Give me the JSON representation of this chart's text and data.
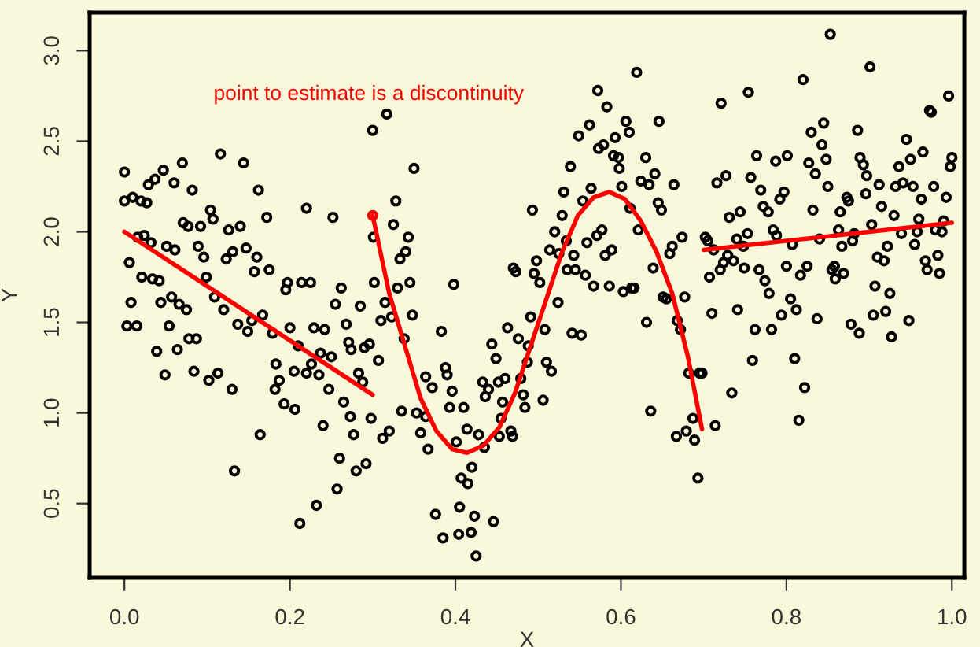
{
  "chart_data": {
    "type": "scatter",
    "xlabel": "X",
    "ylabel": "Y",
    "xlim": [
      -0.042,
      1.015
    ],
    "ylim": [
      0.09,
      3.21
    ],
    "xticks": [
      {
        "value": 0,
        "label": "0.0"
      },
      0.2,
      0.4,
      0.6,
      0.8,
      {
        "value": 1,
        "label": "1.0"
      }
    ],
    "yticks": [
      0.5,
      {
        "value": 1,
        "label": "1.0"
      },
      1.5,
      {
        "value": 2,
        "label": "2.0"
      },
      2.5,
      {
        "value": 3,
        "label": "3.0"
      }
    ],
    "grid": false,
    "legend": false,
    "annotations": [
      "point to estimate is a discontinuity"
    ],
    "series": [
      {
        "marker": "circle",
        "color": "#000000",
        "x": [
          0.0,
          0.0,
          0.01,
          0.02,
          0.027,
          0.029,
          0.037,
          0.047,
          0.06,
          0.07,
          0.082,
          0.071,
          0.077,
          0.092,
          0.104,
          0.107,
          0.116,
          0.126,
          0.14,
          0.144,
          0.162,
          0.172,
          0.22,
          0.252,
          0.3,
          0.006,
          0.016,
          0.024,
          0.032,
          0.051,
          0.061,
          0.089,
          0.096,
          0.099,
          0.021,
          0.034,
          0.042,
          0.008,
          0.003,
          0.015,
          0.044,
          0.057,
          0.066,
          0.075,
          0.054,
          0.039,
          0.064,
          0.049,
          0.078,
          0.087,
          0.084,
          0.102,
          0.113,
          0.109,
          0.12,
          0.123,
          0.131,
          0.147,
          0.157,
          0.16,
          0.175,
          0.137,
          0.149,
          0.154,
          0.167,
          0.179,
          0.13,
          0.164,
          0.133,
          0.183,
          0.187,
          0.182,
          0.193,
          0.206,
          0.195,
          0.197,
          0.214,
          0.225,
          0.2,
          0.21,
          0.205,
          0.22,
          0.226,
          0.229,
          0.242,
          0.237,
          0.235,
          0.25,
          0.247,
          0.262,
          0.255,
          0.268,
          0.271,
          0.274,
          0.285,
          0.29,
          0.296,
          0.283,
          0.288,
          0.265,
          0.273,
          0.24,
          0.277,
          0.26,
          0.28,
          0.292,
          0.298,
          0.257,
          0.232,
          0.212,
          0.302,
          0.301,
          0.317,
          0.35,
          0.328,
          0.325,
          0.343,
          0.34,
          0.333,
          0.33,
          0.345,
          0.315,
          0.323,
          0.31,
          0.348,
          0.338,
          0.307,
          0.335,
          0.353,
          0.364,
          0.358,
          0.367,
          0.383,
          0.388,
          0.39,
          0.396,
          0.393,
          0.364,
          0.372,
          0.32,
          0.312,
          0.398,
          0.41,
          0.414,
          0.401,
          0.428,
          0.435,
          0.407,
          0.415,
          0.42,
          0.376,
          0.385,
          0.404,
          0.405,
          0.423,
          0.419,
          0.425,
          0.446,
          0.433,
          0.436,
          0.44,
          0.444,
          0.449,
          0.452,
          0.46,
          0.457,
          0.453,
          0.455,
          0.467,
          0.469,
          0.463,
          0.476,
          0.482,
          0.484,
          0.479,
          0.487,
          0.488,
          0.491,
          0.47,
          0.473,
          0.493,
          0.495,
          0.498,
          0.502,
          0.508,
          0.506,
          0.51,
          0.516,
          0.514,
          0.52,
          0.524,
          0.525,
          0.529,
          0.531,
          0.534,
          0.535,
          0.539,
          0.543,
          0.545,
          0.541,
          0.552,
          0.554,
          0.557,
          0.549,
          0.562,
          0.564,
          0.559,
          0.567,
          0.571,
          0.577,
          0.572,
          0.573,
          0.579,
          0.583,
          0.581,
          0.589,
          0.586,
          0.593,
          0.591,
          0.597,
          0.598,
          0.601,
          0.606,
          0.61,
          0.619,
          0.611,
          0.603,
          0.613,
          0.616,
          0.621,
          0.624,
          0.63,
          0.634,
          0.641,
          0.646,
          0.645,
          0.649,
          0.664,
          0.639,
          0.631,
          0.636,
          0.662,
          0.659,
          0.674,
          0.651,
          0.655,
          0.677,
          0.668,
          0.672,
          0.667,
          0.679,
          0.682,
          0.695,
          0.698,
          0.687,
          0.689,
          0.693,
          0.714,
          0.71,
          0.707,
          0.702,
          0.705,
          0.712,
          0.72,
          0.724,
          0.729,
          0.736,
          0.721,
          0.716,
          0.727,
          0.731,
          0.744,
          0.74,
          0.753,
          0.748,
          0.749,
          0.741,
          0.734,
          0.754,
          0.757,
          0.764,
          0.769,
          0.772,
          0.778,
          0.767,
          0.774,
          0.779,
          0.762,
          0.759,
          0.782,
          0.784,
          0.788,
          0.787,
          0.792,
          0.797,
          0.801,
          0.8,
          0.794,
          0.805,
          0.812,
          0.81,
          0.822,
          0.815,
          0.807,
          0.817,
          0.825,
          0.82,
          0.827,
          0.83,
          0.835,
          0.832,
          0.84,
          0.837,
          0.845,
          0.843,
          0.848,
          0.85,
          0.853,
          0.855,
          0.858,
          0.859,
          0.869,
          0.863,
          0.867,
          0.865,
          0.873,
          0.875,
          0.88,
          0.882,
          0.878,
          0.886,
          0.888,
          0.889,
          0.893,
          0.897,
          0.896,
          0.901,
          0.903,
          0.907,
          0.905,
          0.91,
          0.912,
          0.915,
          0.918,
          0.92,
          0.922,
          0.925,
          0.927,
          0.93,
          0.932,
          0.936,
          0.939,
          0.941,
          0.945,
          0.948,
          0.95,
          0.953,
          0.955,
          0.958,
          0.96,
          0.963,
          0.965,
          0.968,
          0.97,
          0.973,
          0.975,
          0.978,
          0.98,
          0.983,
          0.985,
          0.988,
          0.99,
          0.993,
          0.996,
          0.998,
          1.0
        ],
        "values": [
          2.33,
          2.17,
          2.19,
          2.17,
          2.16,
          2.26,
          2.29,
          2.34,
          2.27,
          2.38,
          2.23,
          2.05,
          2.03,
          2.03,
          2.12,
          2.07,
          2.43,
          2.01,
          2.03,
          2.38,
          2.23,
          2.08,
          2.13,
          2.08,
          2.56,
          1.83,
          1.97,
          1.98,
          1.94,
          1.92,
          1.9,
          1.92,
          1.86,
          1.75,
          1.75,
          1.74,
          1.73,
          1.61,
          1.48,
          1.48,
          1.61,
          1.64,
          1.6,
          1.57,
          1.48,
          1.34,
          1.35,
          1.21,
          1.41,
          1.41,
          1.23,
          1.18,
          1.22,
          1.64,
          1.57,
          1.85,
          1.89,
          1.91,
          1.78,
          1.86,
          1.79,
          1.49,
          1.45,
          1.51,
          1.54,
          1.44,
          1.13,
          0.88,
          0.68,
          1.27,
          1.18,
          1.13,
          1.05,
          1.02,
          1.68,
          1.72,
          1.72,
          1.72,
          1.47,
          1.37,
          1.23,
          1.22,
          1.27,
          1.47,
          1.46,
          1.33,
          1.21,
          1.31,
          1.13,
          1.69,
          1.6,
          1.49,
          1.39,
          1.35,
          1.59,
          1.36,
          1.38,
          1.22,
          1.17,
          1.06,
          0.98,
          0.93,
          0.88,
          0.75,
          0.68,
          0.72,
          0.97,
          0.58,
          0.49,
          0.39,
          1.72,
          1.97,
          2.65,
          2.35,
          2.17,
          2.04,
          1.97,
          1.89,
          1.85,
          1.69,
          1.72,
          1.61,
          1.53,
          1.51,
          1.54,
          1.41,
          1.29,
          1.01,
          1.0,
          0.98,
          0.89,
          0.8,
          1.45,
          1.25,
          1.21,
          1.12,
          1.03,
          1.2,
          1.14,
          0.9,
          0.86,
          1.71,
          1.03,
          0.91,
          0.84,
          0.88,
          0.81,
          0.64,
          0.61,
          0.7,
          0.44,
          0.31,
          0.33,
          0.48,
          0.43,
          0.34,
          0.21,
          0.4,
          1.17,
          1.09,
          1.13,
          1.38,
          1.3,
          1.17,
          1.19,
          1.06,
          0.87,
          0.97,
          0.9,
          0.87,
          1.47,
          1.41,
          1.1,
          1.03,
          1.19,
          1.28,
          1.37,
          1.53,
          1.8,
          1.78,
          2.12,
          1.77,
          1.84,
          1.72,
          1.46,
          1.07,
          1.28,
          1.23,
          1.9,
          2.0,
          1.61,
          1.88,
          2.09,
          2.22,
          1.95,
          1.79,
          2.36,
          1.87,
          1.79,
          1.44,
          1.43,
          2.17,
          1.76,
          2.53,
          2.59,
          2.24,
          1.94,
          1.7,
          1.98,
          2.01,
          2.78,
          2.46,
          2.48,
          2.69,
          1.87,
          1.9,
          1.7,
          2.52,
          2.42,
          2.41,
          2.35,
          2.25,
          2.61,
          2.55,
          2.88,
          2.13,
          1.67,
          1.69,
          1.69,
          2.01,
          2.28,
          2.41,
          2.26,
          2.32,
          2.61,
          2.16,
          2.12,
          2.26,
          1.8,
          1.5,
          1.01,
          1.92,
          1.88,
          1.97,
          1.64,
          1.63,
          1.64,
          1.51,
          1.46,
          0.87,
          0.9,
          1.22,
          1.22,
          1.22,
          0.97,
          0.85,
          0.64,
          0.93,
          1.55,
          1.75,
          1.97,
          1.95,
          1.9,
          1.79,
          1.83,
          1.87,
          1.84,
          2.71,
          2.27,
          2.31,
          2.08,
          2.11,
          1.96,
          1.99,
          1.92,
          1.8,
          1.57,
          1.11,
          2.77,
          2.3,
          2.42,
          2.23,
          2.14,
          2.11,
          1.79,
          1.73,
          1.66,
          1.46,
          1.29,
          1.46,
          2.01,
          1.98,
          2.39,
          2.18,
          2.22,
          2.42,
          1.81,
          1.54,
          1.63,
          1.57,
          1.3,
          1.14,
          0.96,
          1.93,
          1.76,
          1.81,
          2.84,
          2.38,
          2.55,
          2.32,
          2.12,
          1.96,
          1.52,
          2.6,
          2.48,
          2.4,
          2.25,
          3.09,
          1.79,
          1.81,
          1.74,
          1.77,
          2.01,
          1.92,
          2.11,
          2.19,
          2.17,
          1.95,
          1.99,
          1.49,
          2.56,
          1.44,
          2.41,
          2.37,
          2.31,
          2.21,
          2.91,
          2.04,
          1.7,
          1.54,
          1.86,
          2.26,
          2.14,
          1.84,
          1.56,
          1.92,
          1.66,
          1.42,
          2.09,
          2.25,
          2.36,
          1.99,
          2.27,
          2.51,
          1.51,
          2.4,
          2.25,
          1.93,
          2.0,
          2.07,
          2.18,
          2.44,
          1.84,
          1.79,
          2.67,
          2.66,
          2.25,
          2.01,
          1.87,
          1.77,
          2.0,
          2.06,
          2.19,
          2.75,
          2.36,
          2.41
        ]
      },
      {
        "type": "line",
        "color": "#ff0000",
        "x": [
          0.0,
          0.3
        ],
        "values": [
          2.0,
          1.1
        ]
      },
      {
        "type": "line",
        "color": "#ff0000",
        "x": [
          0.3,
          0.32,
          0.339,
          0.358,
          0.377,
          0.396,
          0.414,
          0.434,
          0.453,
          0.472,
          0.491,
          0.51,
          0.529,
          0.548,
          0.567,
          0.586,
          0.605,
          0.624,
          0.643,
          0.662,
          0.681,
          0.698
        ],
        "values": [
          2.09,
          1.66,
          1.37,
          1.08,
          0.9,
          0.8,
          0.78,
          0.82,
          0.92,
          1.11,
          1.37,
          1.63,
          1.89,
          2.09,
          2.19,
          2.22,
          2.18,
          2.06,
          1.89,
          1.66,
          1.31,
          0.91
        ]
      },
      {
        "type": "line",
        "color": "#ff0000",
        "x": [
          0.7,
          1.0
        ],
        "values": [
          1.9,
          2.05
        ]
      },
      {
        "marker": "circle",
        "color": "#ff0000",
        "x": [
          0.3
        ],
        "values": [
          2.09
        ]
      }
    ]
  }
}
